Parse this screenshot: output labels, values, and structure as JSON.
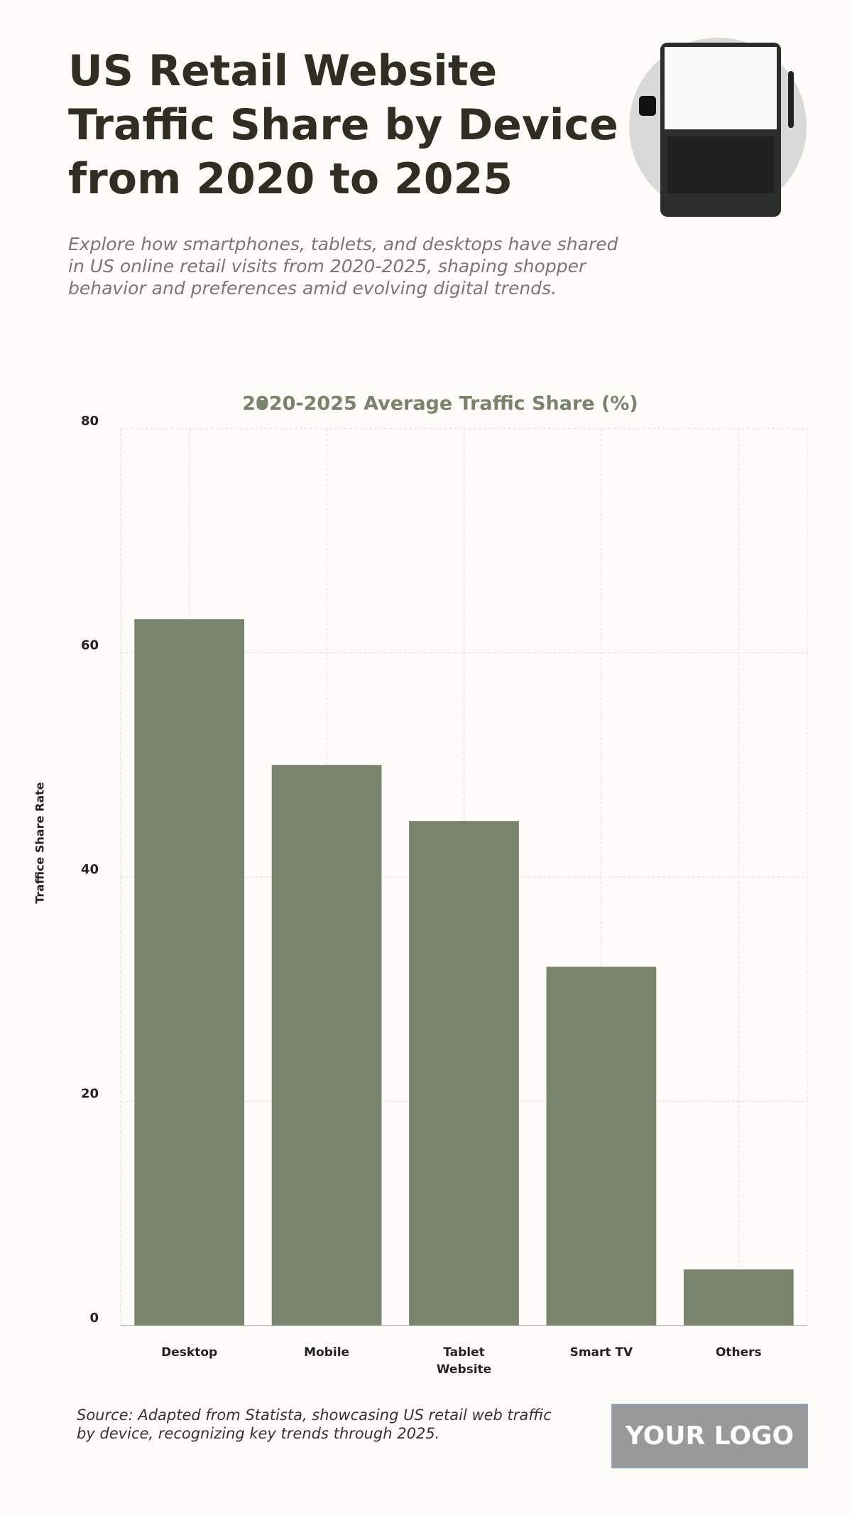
{
  "chart_data": {
    "type": "bar",
    "title": "US Retail Website Traffic Share by Device from 2020 to 2025",
    "subtitle": "Explore how smartphones, tablets, and desktops have shared in US online retail visits from 2020-2025, shaping shopper behavior and preferences amid evolving digital trends.",
    "categories": [
      "Desktop",
      "Mobile",
      "Tablet Website",
      "Smart TV",
      "Others"
    ],
    "series": [
      {
        "name": "2020-2025 Average Traffic Share (%)",
        "color": "#7a836b",
        "values": [
          63,
          50,
          45,
          32,
          5
        ]
      }
    ],
    "y_label": "Traffice Share Rate",
    "ylim": [
      0,
      80
    ],
    "yticks": [
      0,
      20,
      40,
      60,
      80
    ],
    "grid": true,
    "source": "Source: Adapted from Statista, showcasing US retail web traffic by device, recognizing key trends through 2025."
  },
  "logo": "YOUR LOGO"
}
